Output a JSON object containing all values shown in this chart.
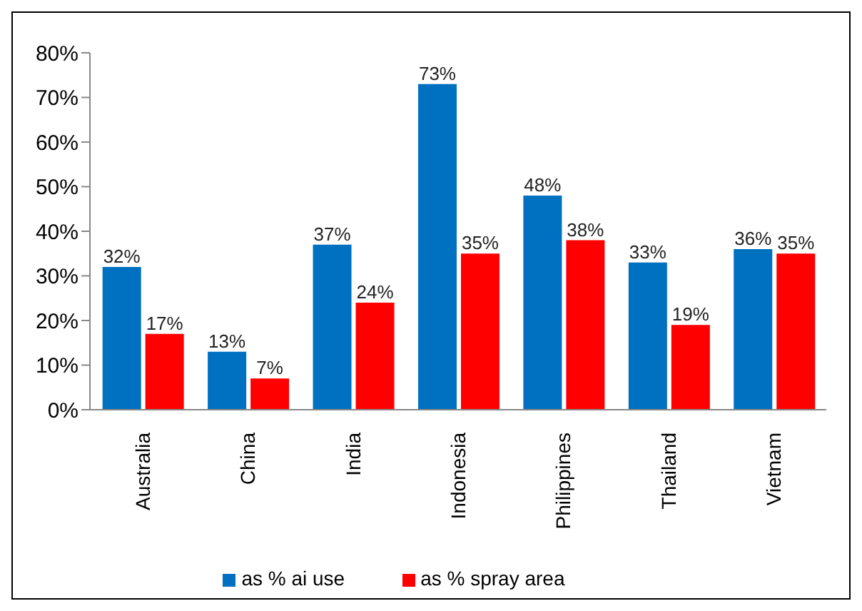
{
  "chart_data": {
    "type": "bar",
    "categories": [
      "Australia",
      "China",
      "India",
      "Indonesia",
      "Philippines",
      "Thailand",
      "Vietnam"
    ],
    "series": [
      {
        "name": "as % ai use",
        "color": "#0070c0",
        "values": [
          32,
          13,
          37,
          73,
          48,
          33,
          36
        ],
        "value_labels": [
          "32%",
          "13%",
          "37%",
          "73%",
          "48%",
          "33%",
          "36%"
        ]
      },
      {
        "name": "as % spray area",
        "color": "#ff0000",
        "values": [
          17,
          7,
          24,
          35,
          38,
          19,
          35
        ],
        "value_labels": [
          "17%",
          "7%",
          "24%",
          "35%",
          "38%",
          "19%",
          "35%"
        ]
      }
    ],
    "ylim": [
      0,
      80
    ],
    "yticks": [
      {
        "value": 0,
        "label": "0%"
      },
      {
        "value": 10,
        "label": "10%"
      },
      {
        "value": 20,
        "label": "20%"
      },
      {
        "value": 30,
        "label": "30%"
      },
      {
        "value": 40,
        "label": "40%"
      },
      {
        "value": 50,
        "label": "50%"
      },
      {
        "value": 60,
        "label": "60%"
      },
      {
        "value": 70,
        "label": "70%"
      },
      {
        "value": 80,
        "label": "80%"
      }
    ],
    "grid": false,
    "legend": "bottom"
  }
}
